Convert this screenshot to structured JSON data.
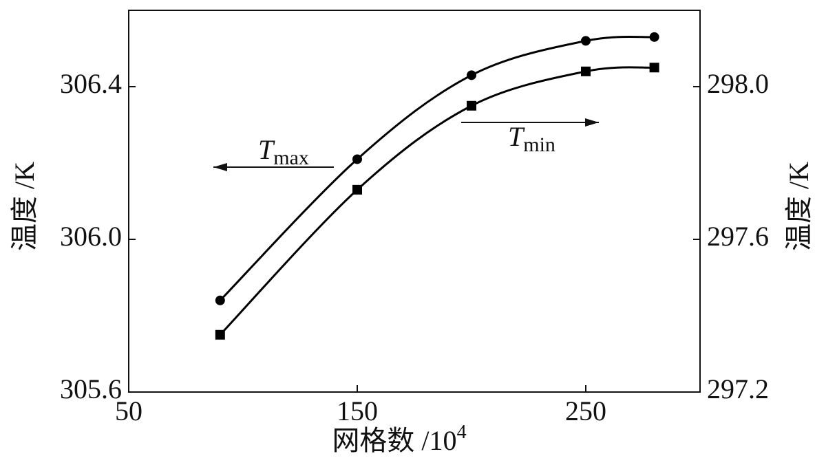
{
  "chart_data": {
    "type": "line",
    "x_label": "网格数 /10",
    "x_label_sup": "4",
    "y_label": "温度 /K",
    "y2_label": "温度 /K",
    "x": [
      90,
      150,
      200,
      250,
      280
    ],
    "xlim": [
      50,
      300
    ],
    "xticks": [
      50,
      150,
      250
    ],
    "ylim": [
      305.6,
      306.6
    ],
    "yticks": [
      {
        "value": 305.6,
        "label": "305.6"
      },
      {
        "value": 306.0,
        "label": "306.0"
      },
      {
        "value": 306.4,
        "label": "306.4"
      }
    ],
    "y2lim": [
      297.2,
      298.2
    ],
    "y2ticks": [
      {
        "value": 297.2,
        "label": "297.2"
      },
      {
        "value": 297.6,
        "label": "297.6"
      },
      {
        "value": 298.0,
        "label": "298.0"
      }
    ],
    "grid": false,
    "series": [
      {
        "name": "Tmax",
        "color": "#000000",
        "marker": "circle",
        "values": [
          305.84,
          306.21,
          306.43,
          306.52,
          306.53
        ]
      },
      {
        "name": "Tmin",
        "color": "#000000",
        "marker": "square",
        "axis": "y2",
        "values": [
          297.35,
          297.73,
          297.95,
          298.04,
          298.05
        ]
      }
    ],
    "annotations": [
      {
        "text": "T",
        "sub": "max",
        "arrow": "left"
      },
      {
        "text": "T",
        "sub": "min",
        "arrow": "right"
      }
    ]
  }
}
